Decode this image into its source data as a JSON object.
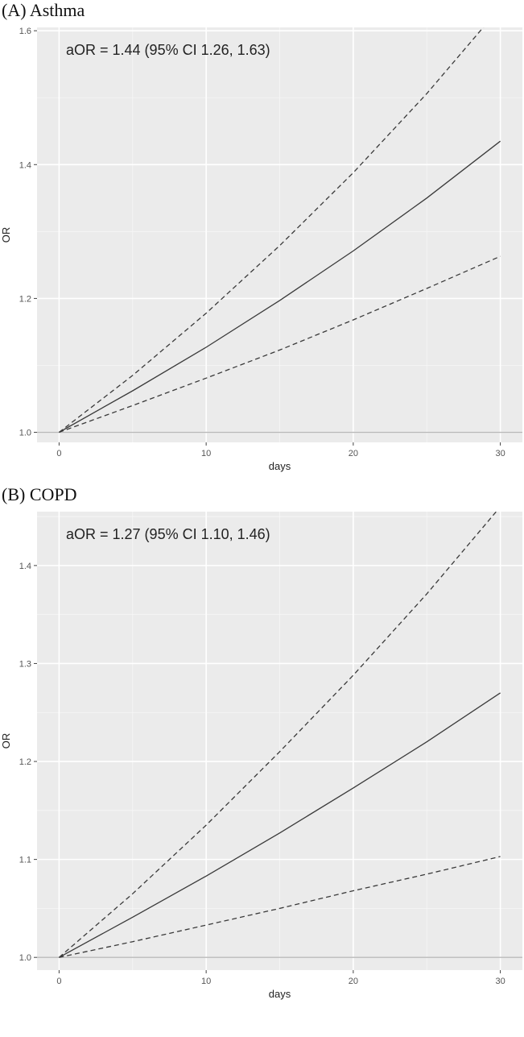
{
  "chart_data": [
    {
      "type": "line",
      "panel_label": "(A) Asthma",
      "annotation": "aOR = 1.44 (95% CI 1.26, 1.63)",
      "xlabel": "days",
      "ylabel": "OR",
      "xlim": [
        -1.5,
        31.5
      ],
      "ylim": [
        0.985,
        1.605
      ],
      "xticks": [
        0,
        10,
        20,
        30
      ],
      "xtick_labels": [
        "0",
        "10",
        "20",
        "30"
      ],
      "yticks": [
        1.0,
        1.2,
        1.4,
        1.6
      ],
      "ytick_labels": [
        "1.0",
        "1.2",
        "1.4",
        "1.6"
      ],
      "grid": true,
      "reference_line": 1.0,
      "series": [
        {
          "style": "solid",
          "x": [
            0,
            5,
            10,
            15,
            20,
            25,
            30
          ],
          "y": [
            1.0,
            1.062,
            1.127,
            1.197,
            1.271,
            1.35,
            1.435
          ]
        },
        {
          "style": "dashed",
          "x": [
            0,
            5,
            10,
            15,
            20,
            25,
            30
          ],
          "y": [
            1.0,
            1.085,
            1.178,
            1.279,
            1.388,
            1.506,
            1.635
          ]
        },
        {
          "style": "dashed",
          "x": [
            0,
            5,
            10,
            15,
            20,
            25,
            30
          ],
          "y": [
            1.0,
            1.04,
            1.081,
            1.123,
            1.168,
            1.215,
            1.263
          ]
        }
      ]
    },
    {
      "type": "line",
      "panel_label": "(B) COPD",
      "annotation": "aOR = 1.27 (95% CI 1.10, 1.46)",
      "xlabel": "days",
      "ylabel": "OR",
      "xlim": [
        -1.5,
        31.5
      ],
      "ylim": [
        0.987,
        1.455
      ],
      "xticks": [
        0,
        10,
        20,
        30
      ],
      "xtick_labels": [
        "0",
        "10",
        "20",
        "30"
      ],
      "yticks": [
        1.0,
        1.1,
        1.2,
        1.3,
        1.4
      ],
      "ytick_labels": [
        "1.0",
        "1.1",
        "1.2",
        "1.3",
        "1.4"
      ],
      "grid": true,
      "reference_line": 1.0,
      "series": [
        {
          "style": "solid",
          "x": [
            0,
            5,
            10,
            15,
            20,
            25,
            30
          ],
          "y": [
            1.0,
            1.041,
            1.083,
            1.127,
            1.173,
            1.22,
            1.27
          ]
        },
        {
          "style": "dashed",
          "x": [
            0,
            5,
            10,
            15,
            20,
            25,
            30
          ],
          "y": [
            1.0,
            1.065,
            1.135,
            1.21,
            1.288,
            1.371,
            1.46
          ]
        },
        {
          "style": "dashed",
          "x": [
            0,
            5,
            10,
            15,
            20,
            25,
            30
          ],
          "y": [
            1.0,
            1.016,
            1.033,
            1.05,
            1.068,
            1.085,
            1.103
          ]
        }
      ]
    }
  ]
}
